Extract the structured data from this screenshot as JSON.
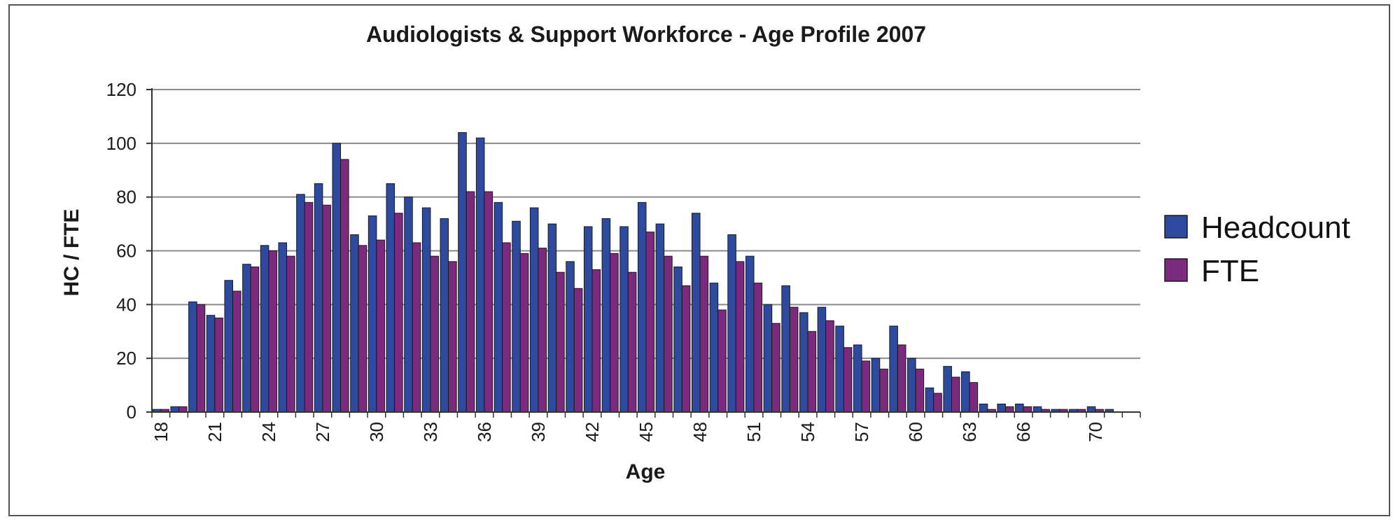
{
  "chart_data": {
    "type": "bar",
    "title": "Audiologists & Support Workforce - Age Profile 2007",
    "xlabel": "Age",
    "ylabel": "HC / FTE",
    "ylim": [
      0,
      120
    ],
    "yticks": [
      0,
      20,
      40,
      60,
      80,
      100,
      120
    ],
    "grid": true,
    "legend_position": "right",
    "categories": [
      18,
      19,
      20,
      21,
      22,
      23,
      24,
      25,
      26,
      27,
      28,
      29,
      30,
      31,
      32,
      33,
      34,
      35,
      36,
      37,
      38,
      39,
      40,
      41,
      42,
      43,
      44,
      45,
      46,
      47,
      48,
      49,
      50,
      51,
      52,
      53,
      54,
      55,
      56,
      57,
      58,
      59,
      60,
      61,
      62,
      63,
      64,
      65,
      66,
      67,
      68,
      69,
      70,
      71,
      72
    ],
    "xtick_labels": [
      "18",
      "21",
      "24",
      "27",
      "30",
      "33",
      "36",
      "39",
      "42",
      "45",
      "48",
      "51",
      "54",
      "57",
      "60",
      "63",
      "66",
      "70"
    ],
    "series": [
      {
        "name": "Headcount",
        "color": "#2E4A9E",
        "values": [
          1,
          2,
          41,
          36,
          49,
          55,
          62,
          63,
          81,
          85,
          100,
          66,
          73,
          85,
          80,
          76,
          72,
          104,
          102,
          78,
          71,
          76,
          70,
          56,
          69,
          72,
          69,
          78,
          70,
          54,
          74,
          48,
          66,
          58,
          40,
          47,
          37,
          39,
          32,
          25,
          20,
          32,
          20,
          9,
          17,
          15,
          3,
          3,
          3,
          2,
          1,
          1,
          2,
          1,
          0
        ]
      },
      {
        "name": "FTE",
        "color": "#7B2A7E",
        "values": [
          1,
          2,
          40,
          35,
          45,
          54,
          60,
          58,
          78,
          77,
          94,
          62,
          64,
          74,
          63,
          58,
          56,
          82,
          82,
          63,
          59,
          61,
          52,
          46,
          53,
          59,
          52,
          67,
          58,
          47,
          58,
          38,
          56,
          48,
          33,
          39,
          30,
          34,
          24,
          19,
          16,
          25,
          16,
          7,
          13,
          11,
          1,
          2,
          2,
          1,
          1,
          1,
          1,
          0,
          0
        ]
      }
    ]
  }
}
